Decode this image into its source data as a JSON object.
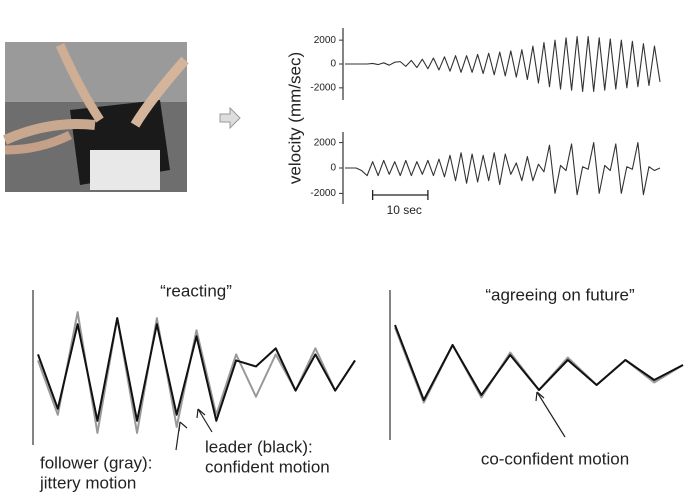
{
  "chart_data": [
    {
      "type": "line",
      "ylabel": "velocity (mm/sec)",
      "xlim": [
        0,
        57
      ],
      "ylim": [
        -2600,
        2600
      ],
      "yticks": [
        -2000,
        0,
        2000
      ],
      "x": [
        0,
        1,
        2,
        3,
        4,
        5,
        6,
        7,
        8,
        9,
        10,
        11,
        12,
        13,
        14,
        15,
        16,
        17,
        18,
        19,
        20,
        21,
        22,
        23,
        24,
        25,
        26,
        27,
        28,
        29,
        30,
        31,
        32,
        33,
        34,
        35,
        36,
        37,
        38,
        39,
        40,
        41,
        42,
        43,
        44,
        45,
        46,
        47,
        48,
        49,
        50,
        51,
        52,
        53,
        54,
        55,
        56,
        57
      ],
      "series": [
        {
          "color": "#333333",
          "values": [
            0,
            0,
            0,
            0,
            0,
            50,
            -50,
            100,
            -100,
            150,
            200,
            -200,
            300,
            -300,
            400,
            -400,
            500,
            -500,
            600,
            -600,
            700,
            -700,
            700,
            -700,
            800,
            -800,
            900,
            -900,
            1000,
            -1000,
            1100,
            -1100,
            1200,
            -1300,
            1500,
            -1600,
            1800,
            -1900,
            2000,
            -2100,
            2200,
            -2200,
            2300,
            -2300,
            2300,
            -2300,
            2200,
            -2200,
            2100,
            -2100,
            2000,
            -2000,
            1900,
            -1900,
            1700,
            -1800,
            1500,
            -1500
          ]
        }
      ]
    },
    {
      "type": "line",
      "xlim": [
        0,
        57
      ],
      "ylim": [
        -2600,
        2600
      ],
      "yticks": [
        -2000,
        0,
        2000
      ],
      "scale_bar": {
        "x": [
          5,
          15
        ],
        "label": "10 sec"
      },
      "x": [
        0,
        1,
        2,
        3,
        4,
        5,
        6,
        7,
        8,
        9,
        10,
        11,
        12,
        13,
        14,
        15,
        16,
        17,
        18,
        19,
        20,
        21,
        22,
        23,
        24,
        25,
        26,
        27,
        28,
        29,
        30,
        31,
        32,
        33,
        34,
        35,
        36,
        37,
        38,
        39,
        40,
        41,
        42,
        43,
        44,
        45,
        46,
        47,
        48,
        49,
        50,
        51,
        52,
        53,
        54,
        55,
        56,
        57
      ],
      "series": [
        {
          "color": "#333333",
          "values": [
            0,
            0,
            0,
            -200,
            -600,
            500,
            -600,
            600,
            -500,
            500,
            -600,
            600,
            -600,
            500,
            -500,
            600,
            -600,
            700,
            -700,
            1000,
            -1000,
            1200,
            -1200,
            1100,
            -1100,
            1000,
            -1000,
            1200,
            -1300,
            1100,
            -500,
            400,
            -1000,
            900,
            -1000,
            300,
            -300,
            1800,
            -2000,
            200,
            -200,
            1900,
            -2100,
            100,
            -100,
            2000,
            -2000,
            200,
            -200,
            1900,
            -2000,
            100,
            -100,
            2000,
            -2100,
            100,
            -200,
            0
          ]
        }
      ]
    },
    {
      "type": "line",
      "title": "“reacting”",
      "xlim": [
        0,
        16
      ],
      "ylim": [
        -1.2,
        1.2
      ],
      "annotations": [
        [
          "follower (gray):",
          "jittery motion"
        ],
        [
          "leader (black):",
          "confident motion"
        ]
      ],
      "x": [
        0,
        1,
        2,
        3,
        4,
        5,
        6,
        7,
        8,
        9,
        10,
        11,
        12,
        13,
        14,
        15,
        16
      ],
      "series": [
        {
          "color": "#999999",
          "values": [
            0.2,
            -0.7,
            1.0,
            -1.0,
            0.9,
            -1.0,
            0.9,
            -0.9,
            0.7,
            -0.7,
            0.3,
            -0.4,
            0.3,
            -0.3,
            0.4,
            -0.3,
            0.2
          ]
        },
        {
          "color": "#111111",
          "values": [
            0.3,
            -0.6,
            0.8,
            -0.8,
            0.9,
            -0.8,
            0.8,
            -0.7,
            0.6,
            -0.8,
            0.2,
            0.1,
            0.4,
            -0.3,
            0.3,
            -0.3,
            0.2
          ]
        }
      ]
    },
    {
      "type": "line",
      "title": "“agreeing on future”",
      "xlim": [
        0,
        10
      ],
      "ylim": [
        -1.2,
        1.2
      ],
      "annotations": [
        [
          "co-confident motion"
        ]
      ],
      "x": [
        0,
        1,
        2,
        3,
        4,
        5,
        6,
        7,
        8,
        9,
        10
      ],
      "series": [
        {
          "color": "#999999",
          "values": [
            0.85,
            -0.65,
            0.5,
            -0.55,
            0.35,
            -0.4,
            0.25,
            -0.3,
            0.2,
            -0.25,
            0.1
          ]
        },
        {
          "color": "#111111",
          "values": [
            0.9,
            -0.6,
            0.5,
            -0.5,
            0.3,
            -0.4,
            0.2,
            -0.3,
            0.2,
            -0.2,
            0.1
          ]
        }
      ]
    }
  ]
}
